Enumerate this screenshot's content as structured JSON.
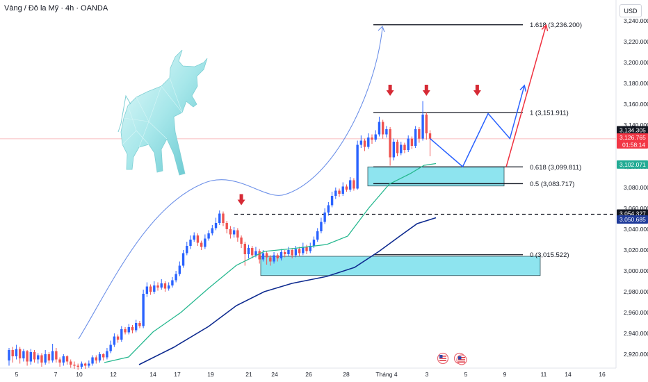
{
  "header": {
    "title": "Vàng / Đô la Mỹ · 4h · OANDA",
    "unit": "USD"
  },
  "colors": {
    "bull": "#2962ff",
    "bear": "#ef5350",
    "zone": "#8ee4ef",
    "ema_fast": "#26b88f",
    "ema_slow": "#0d2a8f",
    "projection_blue": "#2962ff",
    "projection_red": "#ef3240",
    "arrow_marker": "#d62a35",
    "current_price_tag": "#f23645",
    "ema_fast_tag": "#22ab94",
    "ema_slow_tag": "#1e3a9a",
    "last_tag": "#131722"
  },
  "chart_data": {
    "type": "candlestick",
    "title": "",
    "ylim": [
      2905,
      3252
    ],
    "y_ticks": [
      "3,240.000",
      "3,220.000",
      "3,200.000",
      "3,180.000",
      "3,160.000",
      "3,140.000",
      "3,120.000",
      "3,100.000",
      "3,080.000",
      "3,060.000",
      "3,040.000",
      "3,020.000",
      "3,000.000",
      "2,980.000",
      "2,960.000",
      "2,940.000",
      "2,920.000"
    ],
    "y_tick_values": [
      3240,
      3220,
      3200,
      3180,
      3160,
      3140,
      3120,
      3100,
      3080,
      3060,
      3040,
      3020,
      3000,
      2980,
      2960,
      2940,
      2920
    ],
    "x_ticks": [
      "5",
      "7",
      "10",
      "12",
      "14",
      "17",
      "19",
      "21",
      "24",
      "26",
      "28",
      "Tháng 4",
      "3",
      "5",
      "9",
      "11",
      "14",
      "16"
    ],
    "fib_levels": [
      {
        "ratio": "1.618",
        "value": 3236.2,
        "label": "1.618 (3,236.200)"
      },
      {
        "ratio": "1",
        "value": 3151.911,
        "label": "1 (3,151.911)"
      },
      {
        "ratio": "0.618",
        "value": 3099.811,
        "label": "0.618 (3,099.811)"
      },
      {
        "ratio": "0.5",
        "value": 3083.717,
        "label": "0.5 (3,083.717)"
      },
      {
        "ratio": "0",
        "value": 3015.522,
        "label": "0 (3,015.522)"
      }
    ],
    "zones": [
      {
        "name": "upper-demand-zone",
        "top": 3099.8,
        "bottom": 3081.5
      },
      {
        "name": "lower-demand-zone",
        "top": 3014.0,
        "bottom": 2995.5
      }
    ],
    "dashed_level": 3054.327,
    "price_tags": [
      {
        "name": "last-price",
        "label": "3,134.305",
        "value": 3134.305
      },
      {
        "name": "current-price",
        "label": "3,126.765",
        "sublabel": "01:58:14",
        "value": 3126.765
      },
      {
        "name": "ema-fast-value",
        "label": "3,102.071",
        "value": 3102.071
      },
      {
        "name": "dashed-level-value",
        "label": "3,054.327",
        "value": 3054.327
      },
      {
        "name": "ema-slow-value",
        "label": "3,050.685",
        "value": 3050.685
      }
    ],
    "candles": [
      [
        2914,
        2924,
        2926,
        2909
      ],
      [
        2924,
        2918,
        2927,
        2912
      ],
      [
        2918,
        2925,
        2929,
        2915
      ],
      [
        2925,
        2916,
        2927,
        2911
      ],
      [
        2916,
        2923,
        2925,
        2913
      ],
      [
        2923,
        2913,
        2924,
        2909
      ],
      [
        2913,
        2922,
        2925,
        2910
      ],
      [
        2922,
        2915,
        2924,
        2912
      ],
      [
        2915,
        2919,
        2921,
        2911
      ],
      [
        2919,
        2912,
        2921,
        2908
      ],
      [
        2912,
        2920,
        2924,
        2910
      ],
      [
        2920,
        2914,
        2922,
        2911
      ],
      [
        2914,
        2923,
        2930,
        2912
      ],
      [
        2923,
        2915,
        2926,
        2912
      ],
      [
        2915,
        2912,
        2917,
        2908
      ],
      [
        2912,
        2918,
        2920,
        2909
      ],
      [
        2918,
        2913,
        2919,
        2910
      ],
      [
        2913,
        2910,
        2915,
        2907
      ],
      [
        2910,
        2909,
        2913,
        2906
      ],
      [
        2909,
        2908,
        2911,
        2905
      ],
      [
        2908,
        2911,
        2913,
        2906
      ],
      [
        2911,
        2909,
        2912,
        2906
      ],
      [
        2909,
        2911,
        2914,
        2907
      ],
      [
        2911,
        2917,
        2919,
        2909
      ],
      [
        2917,
        2914,
        2919,
        2911
      ],
      [
        2914,
        2920,
        2922,
        2912
      ],
      [
        2920,
        2917,
        2921,
        2914
      ],
      [
        2917,
        2923,
        2926,
        2915
      ],
      [
        2923,
        2929,
        2933,
        2921
      ],
      [
        2929,
        2937,
        2940,
        2927
      ],
      [
        2937,
        2934,
        2939,
        2931
      ],
      [
        2934,
        2944,
        2947,
        2932
      ],
      [
        2944,
        2941,
        2946,
        2939
      ],
      [
        2941,
        2946,
        2949,
        2939
      ],
      [
        2946,
        2943,
        2948,
        2940
      ],
      [
        2943,
        2950,
        2953,
        2941
      ],
      [
        2950,
        2947,
        2952,
        2945
      ],
      [
        2947,
        2978,
        2982,
        2945
      ],
      [
        2978,
        2985,
        2989,
        2975
      ],
      [
        2985,
        2980,
        2987,
        2977
      ],
      [
        2980,
        2986,
        2990,
        2978
      ],
      [
        2986,
        2984,
        2989,
        2981
      ],
      [
        2984,
        2988,
        2992,
        2982
      ],
      [
        2988,
        2983,
        2990,
        2980
      ],
      [
        2983,
        2986,
        2989,
        2981
      ],
      [
        2986,
        2991,
        2994,
        2984
      ],
      [
        2991,
        2997,
        3000,
        2989
      ],
      [
        2997,
        3005,
        3009,
        2995
      ],
      [
        3005,
        3017,
        3020,
        3003
      ],
      [
        3017,
        3024,
        3028,
        3015
      ],
      [
        3024,
        3030,
        3034,
        3021
      ],
      [
        3030,
        3034,
        3037,
        3028
      ],
      [
        3034,
        3027,
        3036,
        3024
      ],
      [
        3027,
        3023,
        3029,
        3020
      ],
      [
        3023,
        3031,
        3035,
        3021
      ],
      [
        3031,
        3036,
        3039,
        3029
      ],
      [
        3036,
        3041,
        3044,
        3034
      ],
      [
        3041,
        3046,
        3051,
        3039
      ],
      [
        3046,
        3055,
        3058,
        3044
      ],
      [
        3055,
        3046,
        3057,
        3043
      ],
      [
        3046,
        3040,
        3048,
        3036
      ],
      [
        3040,
        3035,
        3043,
        3031
      ],
      [
        3035,
        3039,
        3042,
        3032
      ],
      [
        3039,
        3032,
        3041,
        3028
      ],
      [
        3032,
        3026,
        3034,
        3022
      ],
      [
        3026,
        3016,
        3028,
        3005
      ],
      [
        3016,
        3022,
        3025,
        3012
      ],
      [
        3022,
        3015,
        3024,
        3012
      ],
      [
        3015,
        3019,
        3023,
        3013
      ],
      [
        3019,
        3011,
        3021,
        3007
      ],
      [
        3011,
        3017,
        3020,
        3009
      ],
      [
        3017,
        3013,
        3019,
        3006
      ],
      [
        3013,
        3009,
        3015,
        3005
      ],
      [
        3009,
        3015,
        3018,
        3007
      ],
      [
        3015,
        3012,
        3017,
        3009
      ],
      [
        3012,
        3018,
        3021,
        3010
      ],
      [
        3018,
        3016,
        3020,
        3013
      ],
      [
        3016,
        3020,
        3023,
        3014
      ],
      [
        3020,
        3015,
        3022,
        3012
      ],
      [
        3015,
        3021,
        3024,
        3013
      ],
      [
        3021,
        3017,
        3023,
        3014
      ],
      [
        3017,
        3023,
        3027,
        3015
      ],
      [
        3023,
        3019,
        3025,
        3016
      ],
      [
        3019,
        3024,
        3027,
        3017
      ],
      [
        3024,
        3030,
        3033,
        3022
      ],
      [
        3030,
        3038,
        3041,
        3028
      ],
      [
        3038,
        3047,
        3051,
        3036
      ],
      [
        3047,
        3056,
        3060,
        3045
      ],
      [
        3056,
        3063,
        3066,
        3053
      ],
      [
        3063,
        3072,
        3076,
        3061
      ],
      [
        3072,
        3077,
        3080,
        3069
      ],
      [
        3077,
        3074,
        3079,
        3071
      ],
      [
        3074,
        3081,
        3085,
        3072
      ],
      [
        3081,
        3078,
        3083,
        3076
      ],
      [
        3078,
        3087,
        3090,
        3076
      ],
      [
        3087,
        3079,
        3089,
        3077
      ],
      [
        3079,
        3121,
        3125,
        3078
      ],
      [
        3121,
        3125,
        3130,
        3118
      ],
      [
        3125,
        3119,
        3127,
        3115
      ],
      [
        3119,
        3128,
        3132,
        3117
      ],
      [
        3128,
        3126,
        3131,
        3122
      ],
      [
        3126,
        3131,
        3135,
        3124
      ],
      [
        3131,
        3143,
        3148,
        3129
      ],
      [
        3143,
        3131,
        3145,
        3127
      ],
      [
        3131,
        3136,
        3139,
        3128
      ],
      [
        3136,
        3109,
        3138,
        3101
      ],
      [
        3109,
        3124,
        3127,
        3106
      ],
      [
        3124,
        3113,
        3126,
        3110
      ],
      [
        3113,
        3121,
        3124,
        3111
      ],
      [
        3121,
        3116,
        3123,
        3113
      ],
      [
        3116,
        3127,
        3130,
        3114
      ],
      [
        3127,
        3120,
        3129,
        3117
      ],
      [
        3120,
        3136,
        3139,
        3118
      ],
      [
        3136,
        3127,
        3138,
        3123
      ],
      [
        3127,
        3150,
        3163,
        3125
      ],
      [
        3150,
        3132,
        3152,
        3126
      ],
      [
        3132,
        3127,
        3135,
        3110
      ]
    ],
    "ema_fast": [
      3089,
      3095,
      3103
    ],
    "ema_slow": [
      3036,
      3043,
      3051
    ],
    "projections": [
      {
        "name": "blue-zigzag-projection",
        "path": [
          [
            116,
            3127
          ],
          [
            125,
            3100
          ],
          [
            132,
            3151
          ],
          [
            138,
            3127
          ],
          [
            142,
            3178
          ]
        ]
      },
      {
        "name": "red-target-projection",
        "path": [
          [
            137,
            3100
          ],
          [
            148,
            3236
          ]
        ]
      }
    ],
    "markers": [
      {
        "name": "peak-marker-1",
        "x": 64,
        "value": 3063
      },
      {
        "name": "peak-marker-2",
        "x": 105,
        "value": 3168
      },
      {
        "name": "peak-marker-3",
        "x": 115,
        "value": 3168
      },
      {
        "name": "peak-marker-4",
        "x": 129,
        "value": 3168
      }
    ]
  }
}
